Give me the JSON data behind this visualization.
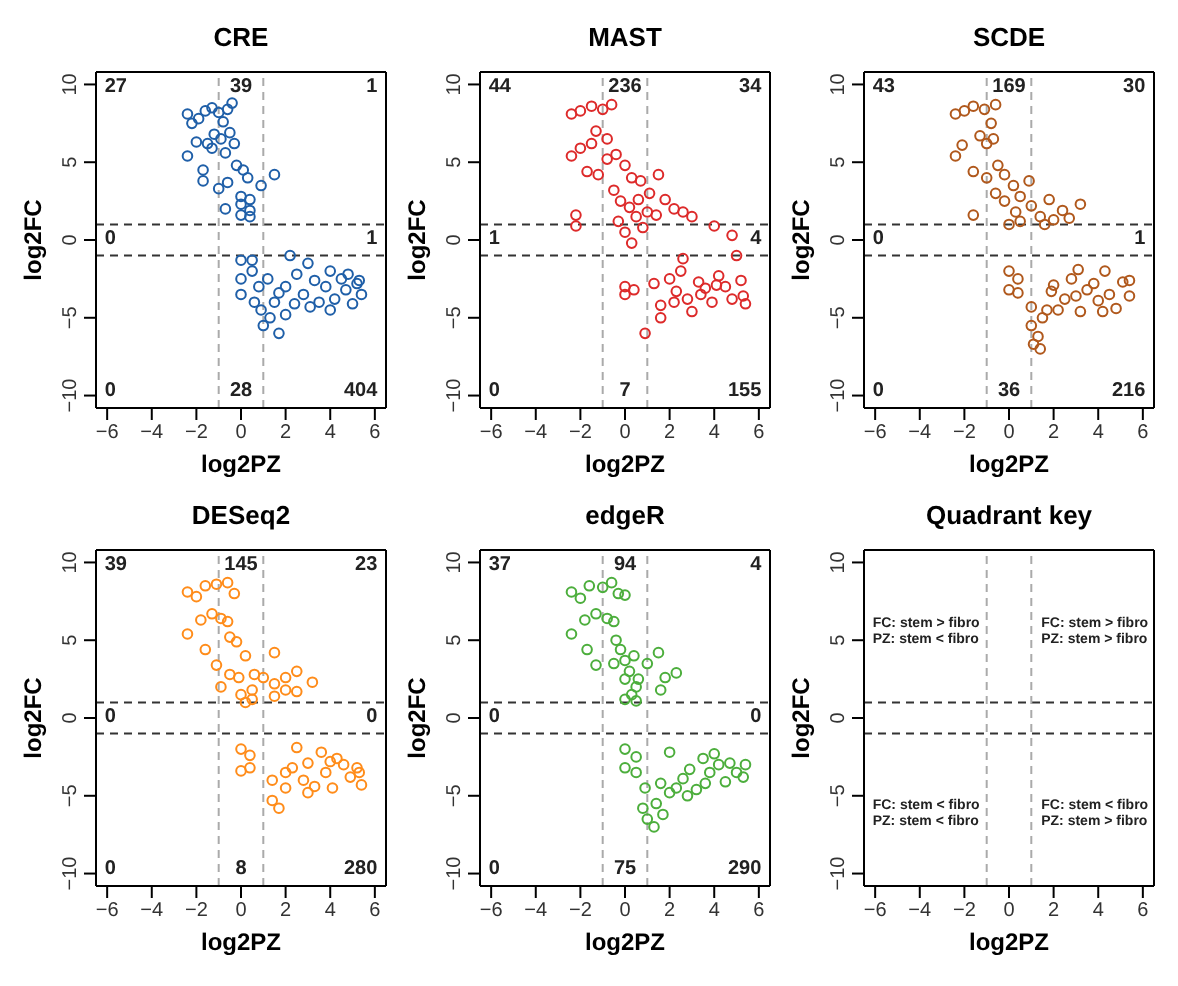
{
  "chart_data": [
    {
      "type": "scatter",
      "title": "CRE",
      "xlabel": "log2PZ",
      "ylabel": "log2FC",
      "xlim": [
        -6.5,
        6.5
      ],
      "ylim": [
        -10.8,
        10.8
      ],
      "xticks": [
        -6,
        -4,
        -2,
        0,
        2,
        4,
        6
      ],
      "yticks": [
        -10,
        -5,
        0,
        5,
        10
      ],
      "grid": false,
      "marker": "circle",
      "ref_lines": [
        {
          "axis": "y",
          "value": 1,
          "color": "#333333",
          "line_style": "dashed"
        },
        {
          "axis": "y",
          "value": -1,
          "color": "#333333",
          "line_style": "dashed"
        },
        {
          "axis": "x",
          "value": -1,
          "color": "#aaaaaa",
          "line_style": "dashed"
        },
        {
          "axis": "x",
          "value": 1,
          "color": "#aaaaaa",
          "line_style": "dashed"
        }
      ],
      "annotations": [
        "27",
        "39",
        "1",
        "0",
        "1",
        "0",
        "28",
        "404"
      ],
      "series": [
        {
          "color": "#1f5fa8",
          "x": [
            -2.4,
            -2.2,
            -1.9,
            -1.6,
            -1.3,
            -1.0,
            -0.6,
            -0.4,
            -0.8,
            -1.2,
            -0.9,
            -0.5,
            -0.3,
            -1.5,
            -2.0,
            -2.4,
            -1.3,
            -0.7,
            -1.7,
            -1.7,
            -1.0,
            -0.6,
            -0.2,
            0.1,
            0.3,
            0.9,
            1.5,
            -0.7,
            0.0,
            0.0,
            0.4,
            0.4,
            0.4,
            0.0,
            0.0,
            0.0,
            0.0,
            0.5,
            0.5,
            0.8,
            0.6,
            0.9,
            1.0,
            1.3,
            1.7,
            1.5,
            2.0,
            2.0,
            2.2,
            2.5,
            2.8,
            3.0,
            3.3,
            3.5,
            3.8,
            4.0,
            4.2,
            4.5,
            4.7,
            5.0,
            5.2,
            5.4,
            5.3,
            1.2,
            1.7,
            2.4,
            3.1,
            4.0,
            4.8
          ],
          "values": [
            8.1,
            7.5,
            7.8,
            8.3,
            8.5,
            8.2,
            8.4,
            8.8,
            7.6,
            6.8,
            6.5,
            6.9,
            6.2,
            6.2,
            6.3,
            5.4,
            5.9,
            5.6,
            4.5,
            3.8,
            3.3,
            3.7,
            4.8,
            4.5,
            4.0,
            3.5,
            4.2,
            2.0,
            2.8,
            2.3,
            2.6,
            1.9,
            1.5,
            1.6,
            -1.3,
            -2.5,
            -3.5,
            -1.3,
            -2.0,
            -3.0,
            -4.0,
            -4.5,
            -5.5,
            -5.0,
            -6.0,
            -4.0,
            -4.8,
            -3.0,
            -1.0,
            -2.2,
            -3.5,
            -1.5,
            -2.6,
            -4.0,
            -3.0,
            -2.0,
            -3.8,
            -2.5,
            -3.2,
            -4.1,
            -2.8,
            -3.5,
            -2.6,
            -2.5,
            -3.4,
            -4.1,
            -4.3,
            -4.5,
            -2.2
          ]
        }
      ]
    },
    {
      "type": "scatter",
      "title": "MAST",
      "xlabel": "log2PZ",
      "ylabel": "log2FC",
      "xlim": [
        -6.5,
        6.5
      ],
      "ylim": [
        -10.8,
        10.8
      ],
      "xticks": [
        -6,
        -4,
        -2,
        0,
        2,
        4,
        6
      ],
      "yticks": [
        -10,
        -5,
        0,
        5,
        10
      ],
      "grid": false,
      "marker": "circle",
      "ref_lines": [
        {
          "axis": "y",
          "value": 1,
          "color": "#333333",
          "line_style": "dashed"
        },
        {
          "axis": "y",
          "value": -1,
          "color": "#333333",
          "line_style": "dashed"
        },
        {
          "axis": "x",
          "value": -1,
          "color": "#aaaaaa",
          "line_style": "dashed"
        },
        {
          "axis": "x",
          "value": 1,
          "color": "#aaaaaa",
          "line_style": "dashed"
        }
      ],
      "annotations": [
        "44",
        "236",
        "34",
        "1",
        "4",
        "0",
        "7",
        "155"
      ],
      "series": [
        {
          "color": "#dd2a2a",
          "x": [
            -2.4,
            -2.0,
            -1.5,
            -1.0,
            -0.6,
            -1.3,
            -0.8,
            -1.5,
            -2.0,
            -2.4,
            -1.7,
            -1.2,
            -0.8,
            -0.4,
            0.0,
            0.3,
            0.7,
            1.1,
            1.5,
            -0.5,
            -0.2,
            0.2,
            0.6,
            1.0,
            1.4,
            1.8,
            2.2,
            2.6,
            3.0,
            4.0,
            4.8,
            -2.2,
            -2.2,
            -0.3,
            0.0,
            0.3,
            0.8,
            0.5,
            0.0,
            0.0,
            0.4,
            0.9,
            1.3,
            1.6,
            1.6,
            2.0,
            2.3,
            2.6,
            2.5,
            2.8,
            3.0,
            3.3,
            3.6,
            3.9,
            4.2,
            4.5,
            4.8,
            5.0,
            5.2,
            5.3,
            5.4,
            2.2,
            3.4,
            4.1
          ],
          "values": [
            8.1,
            8.3,
            8.6,
            8.4,
            8.7,
            7.0,
            6.5,
            6.2,
            5.9,
            5.4,
            4.4,
            4.2,
            5.2,
            5.5,
            4.8,
            4.0,
            3.8,
            3.0,
            4.2,
            3.2,
            2.5,
            2.1,
            2.6,
            1.8,
            1.6,
            2.6,
            2.0,
            1.8,
            1.5,
            0.9,
            0.3,
            1.6,
            0.9,
            1.2,
            0.5,
            -0.2,
            0.8,
            1.5,
            -3.0,
            -3.5,
            -3.2,
            -6.0,
            -2.8,
            -4.2,
            -5.0,
            -2.5,
            -3.3,
            -1.2,
            -2.0,
            -3.8,
            -4.6,
            -2.7,
            -3.1,
            -4.0,
            -2.3,
            -3.0,
            -3.8,
            -1.0,
            -2.6,
            -3.6,
            -4.1,
            -4.0,
            -3.5,
            -2.9
          ]
        }
      ]
    },
    {
      "type": "scatter",
      "title": "SCDE",
      "xlabel": "log2PZ",
      "ylabel": "log2FC",
      "xlim": [
        -6.5,
        6.5
      ],
      "ylim": [
        -10.8,
        10.8
      ],
      "xticks": [
        -6,
        -4,
        -2,
        0,
        2,
        4,
        6
      ],
      "yticks": [
        -10,
        -5,
        0,
        5,
        10
      ],
      "grid": false,
      "marker": "circle",
      "ref_lines": [
        {
          "axis": "y",
          "value": 1,
          "color": "#333333",
          "line_style": "dashed"
        },
        {
          "axis": "y",
          "value": -1,
          "color": "#333333",
          "line_style": "dashed"
        },
        {
          "axis": "x",
          "value": -1,
          "color": "#aaaaaa",
          "line_style": "dashed"
        },
        {
          "axis": "x",
          "value": 1,
          "color": "#aaaaaa",
          "line_style": "dashed"
        }
      ],
      "annotations": [
        "43",
        "169",
        "30",
        "0",
        "1",
        "0",
        "36",
        "216"
      ],
      "series": [
        {
          "color": "#b0581c",
          "x": [
            -2.4,
            -2.0,
            -1.6,
            -1.1,
            -0.6,
            -0.8,
            -1.3,
            -1.0,
            -0.7,
            -2.1,
            -2.4,
            -1.6,
            -1.0,
            -0.5,
            -0.2,
            0.2,
            0.5,
            0.9,
            1.0,
            -0.6,
            -0.2,
            0.3,
            0.5,
            0.0,
            -1.6,
            1.4,
            1.8,
            2.0,
            2.4,
            2.7,
            3.2,
            1.6,
            0.0,
            0.0,
            0.4,
            0.4,
            1.0,
            1.0,
            1.1,
            1.3,
            1.5,
            1.4,
            1.7,
            1.9,
            2.2,
            2.5,
            2.8,
            3.1,
            3.2,
            3.5,
            3.8,
            4.0,
            4.3,
            4.5,
            4.8,
            5.1,
            5.4,
            5.4,
            2.0,
            3.0,
            4.2
          ],
          "values": [
            8.1,
            8.3,
            8.6,
            8.4,
            8.7,
            7.5,
            6.7,
            6.2,
            6.5,
            6.1,
            5.4,
            4.4,
            4.0,
            4.8,
            4.2,
            3.5,
            2.8,
            3.8,
            2.2,
            3.0,
            2.5,
            1.8,
            1.2,
            1.0,
            1.6,
            1.5,
            2.6,
            1.3,
            1.9,
            1.4,
            2.3,
            1.0,
            -2.0,
            -3.2,
            -2.5,
            -3.4,
            -4.3,
            -5.5,
            -6.7,
            -6.2,
            -5.0,
            -7.0,
            -4.5,
            -3.3,
            -4.5,
            -3.8,
            -2.5,
            -1.9,
            -4.6,
            -3.2,
            -2.8,
            -3.9,
            -2.0,
            -3.5,
            -4.4,
            -2.7,
            -3.6,
            -2.6,
            -2.9,
            -3.6,
            -4.6
          ]
        }
      ]
    },
    {
      "type": "scatter",
      "title": "DESeq2",
      "xlabel": "log2PZ",
      "ylabel": "log2FC",
      "xlim": [
        -6.5,
        6.5
      ],
      "ylim": [
        -10.8,
        10.8
      ],
      "xticks": [
        -6,
        -4,
        -2,
        0,
        2,
        4,
        6
      ],
      "yticks": [
        -10,
        -5,
        0,
        5,
        10
      ],
      "grid": false,
      "marker": "circle",
      "ref_lines": [
        {
          "axis": "y",
          "value": 1,
          "color": "#333333",
          "line_style": "dashed"
        },
        {
          "axis": "y",
          "value": -1,
          "color": "#333333",
          "line_style": "dashed"
        },
        {
          "axis": "x",
          "value": -1,
          "color": "#aaaaaa",
          "line_style": "dashed"
        },
        {
          "axis": "x",
          "value": 1,
          "color": "#aaaaaa",
          "line_style": "dashed"
        }
      ],
      "annotations": [
        "39",
        "145",
        "23",
        "0",
        "0",
        "0",
        "8",
        "280"
      ],
      "series": [
        {
          "color": "#ff8c1a",
          "x": [
            -2.4,
            -2.0,
            -1.6,
            -1.1,
            -0.6,
            -0.3,
            -1.3,
            -0.9,
            -0.6,
            -1.8,
            -2.4,
            -1.6,
            -1.1,
            -0.5,
            -0.2,
            0.2,
            0.6,
            1.5,
            -0.5,
            -0.1,
            0.0,
            0.2,
            0.5,
            1.0,
            1.5,
            1.5,
            2.0,
            2.5,
            2.5,
            3.2,
            2.0,
            0.5,
            -0.9,
            0.0,
            0.0,
            0.4,
            0.4,
            1.4,
            1.4,
            1.7,
            2.0,
            2.3,
            2.5,
            2.8,
            3.0,
            3.3,
            3.6,
            3.8,
            4.1,
            4.3,
            4.6,
            4.9,
            5.2,
            5.4,
            5.3,
            2.0,
            3.0,
            4.0
          ],
          "values": [
            8.1,
            7.8,
            8.5,
            8.6,
            8.7,
            8.0,
            6.7,
            6.4,
            6.2,
            6.3,
            5.4,
            4.4,
            3.4,
            5.2,
            4.9,
            4.0,
            2.8,
            4.2,
            2.8,
            2.6,
            1.5,
            1.0,
            1.8,
            2.6,
            1.4,
            2.2,
            2.6,
            1.7,
            3.0,
            2.3,
            1.8,
            1.2,
            2.0,
            -2.0,
            -3.4,
            -2.4,
            -3.2,
            -4.0,
            -5.3,
            -5.8,
            -4.5,
            -3.2,
            -1.9,
            -4.0,
            -2.9,
            -4.4,
            -2.2,
            -3.5,
            -4.5,
            -2.6,
            -3.0,
            -3.8,
            -3.2,
            -4.3,
            -3.5,
            -3.5,
            -4.8,
            -2.8
          ]
        }
      ]
    },
    {
      "type": "scatter",
      "title": "edgeR",
      "xlabel": "log2PZ",
      "ylabel": "log2FC",
      "xlim": [
        -6.5,
        6.5
      ],
      "ylim": [
        -10.8,
        10.8
      ],
      "xticks": [
        -6,
        -4,
        -2,
        0,
        2,
        4,
        6
      ],
      "yticks": [
        -10,
        -5,
        0,
        5,
        10
      ],
      "grid": false,
      "marker": "circle",
      "ref_lines": [
        {
          "axis": "y",
          "value": 1,
          "color": "#333333",
          "line_style": "dashed"
        },
        {
          "axis": "y",
          "value": -1,
          "color": "#333333",
          "line_style": "dashed"
        },
        {
          "axis": "x",
          "value": -1,
          "color": "#aaaaaa",
          "line_style": "dashed"
        },
        {
          "axis": "x",
          "value": 1,
          "color": "#aaaaaa",
          "line_style": "dashed"
        }
      ],
      "annotations": [
        "37",
        "94",
        "4",
        "0",
        "0",
        "0",
        "75",
        "290"
      ],
      "series": [
        {
          "color": "#4cae3c",
          "x": [
            -2.4,
            -2.0,
            -1.6,
            -1.0,
            -0.6,
            -0.3,
            0.0,
            -1.3,
            -0.8,
            -0.5,
            -1.8,
            -2.4,
            -1.7,
            -1.3,
            -0.5,
            -0.4,
            -0.2,
            0.0,
            0.2,
            0.4,
            0.6,
            1.0,
            1.5,
            1.8,
            2.3,
            1.6,
            0.0,
            0.0,
            0.3,
            0.5,
            0.5,
            0.0,
            0.0,
            0.5,
            0.5,
            0.9,
            0.8,
            1.0,
            1.3,
            1.4,
            1.7,
            1.6,
            2.0,
            2.0,
            2.3,
            2.6,
            2.9,
            3.2,
            3.5,
            3.8,
            4.0,
            4.2,
            4.5,
            4.7,
            5.0,
            5.3,
            5.4,
            2.8,
            3.6
          ],
          "values": [
            8.1,
            7.7,
            8.5,
            8.4,
            8.7,
            8.0,
            7.9,
            6.7,
            6.4,
            6.2,
            6.3,
            5.4,
            4.4,
            3.4,
            3.5,
            5.0,
            4.4,
            3.7,
            3.0,
            4.0,
            2.5,
            3.5,
            4.2,
            2.6,
            2.9,
            1.8,
            2.5,
            1.2,
            1.5,
            1.1,
            2.0,
            -2.0,
            -3.2,
            -2.5,
            -3.5,
            -4.5,
            -5.8,
            -6.5,
            -7.0,
            -5.5,
            -6.2,
            -4.2,
            -4.8,
            -2.2,
            -4.5,
            -3.9,
            -3.3,
            -4.6,
            -2.6,
            -3.5,
            -2.3,
            -3.0,
            -4.1,
            -2.9,
            -3.5,
            -3.8,
            -3.0,
            -5.0,
            -4.2
          ]
        }
      ]
    },
    {
      "type": "scatter",
      "title": "Quadrant key",
      "xlabel": "log2PZ",
      "ylabel": "log2FC",
      "xlim": [
        -6.5,
        6.5
      ],
      "ylim": [
        -10.8,
        10.8
      ],
      "xticks": [
        -6,
        -4,
        -2,
        0,
        2,
        4,
        6
      ],
      "yticks": [
        -10,
        -5,
        0,
        5,
        10
      ],
      "grid": false,
      "ref_lines": [
        {
          "axis": "y",
          "value": 1,
          "color": "#333333",
          "line_style": "dashed"
        },
        {
          "axis": "y",
          "value": -1,
          "color": "#333333",
          "line_style": "dashed"
        },
        {
          "axis": "x",
          "value": -1,
          "color": "#aaaaaa",
          "line_style": "dashed"
        },
        {
          "axis": "x",
          "value": 1,
          "color": "#aaaaaa",
          "line_style": "dashed"
        }
      ],
      "annotations": [
        "FC: stem > fibro\nPZ: stem < fibro",
        "FC: stem > fibro\nPZ: stem > fibro",
        "FC: stem < fibro\nPZ: stem < fibro",
        "FC: stem < fibro\nPZ: stem > fibro"
      ]
    }
  ]
}
